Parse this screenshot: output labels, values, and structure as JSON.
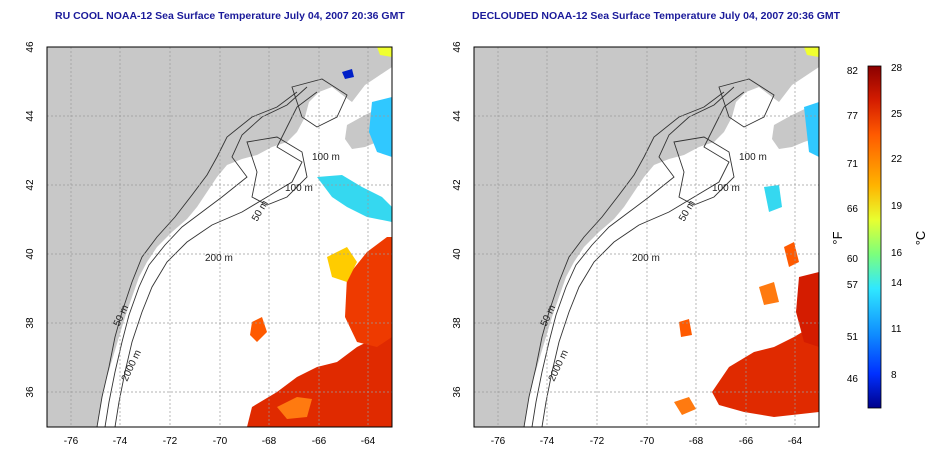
{
  "panels": [
    {
      "title": "RU COOL NOAA-12 Sea Surface Temperature July 04, 2007 20:36 GMT",
      "variant": "raw with clouds"
    },
    {
      "title": "DECLOUDED NOAA-12 Sea Surface Temperature July 04, 2007 20:36 GMT",
      "variant": "declouded"
    }
  ],
  "axes": {
    "lon_range": [
      -77,
      -63
    ],
    "lat_range": [
      35,
      46
    ],
    "lon_ticks": [
      -76,
      -74,
      -72,
      -70,
      -68,
      -66,
      -64
    ],
    "lat_ticks": [
      36,
      38,
      40,
      42,
      44,
      46
    ],
    "lon_tick_labels": [
      "-76",
      "-74",
      "-72",
      "-70",
      "-68",
      "-66",
      "-64"
    ],
    "lat_tick_labels": [
      "36",
      "38",
      "40",
      "42",
      "44",
      "46"
    ]
  },
  "contour_labels": [
    "100 m",
    "100 m",
    "50 m",
    "200 m",
    "50 m",
    "2000 m"
  ],
  "colorbar": {
    "fahrenheit_unit": "°F",
    "celsius_unit": "°C",
    "fahrenheit_ticks": [
      "82",
      "77",
      "71",
      "66",
      "60",
      "57",
      "51",
      "46"
    ],
    "celsius_ticks": [
      "28",
      "25",
      "22",
      "19",
      "16",
      "14",
      "11",
      "8"
    ],
    "range_c": [
      6,
      28
    ],
    "colors": [
      "#8b0000",
      "#d41c00",
      "#ff5a00",
      "#ffb400",
      "#e8ff30",
      "#7cff7c",
      "#30e8ff",
      "#1090ff",
      "#0030ff",
      "#00008b"
    ]
  }
}
